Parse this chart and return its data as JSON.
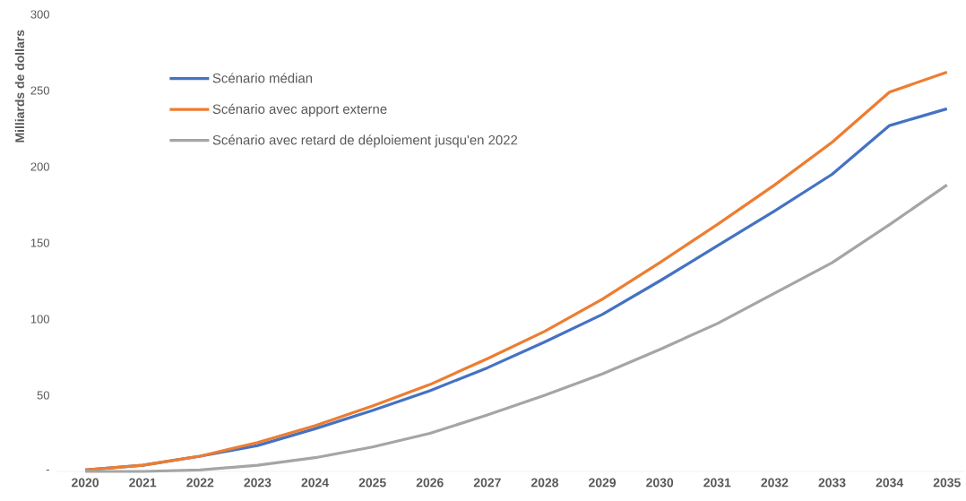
{
  "chart_data": {
    "type": "line",
    "ylabel": "Milliards de dollars",
    "categories": [
      "2020",
      "2021",
      "2022",
      "2023",
      "2024",
      "2025",
      "2026",
      "2027",
      "2028",
      "2029",
      "2030",
      "2031",
      "2032",
      "2033",
      "2034",
      "2035"
    ],
    "series": [
      {
        "name": "Scénario médian",
        "color": "#4472c4",
        "values": [
          1,
          4,
          10,
          17,
          28,
          40,
          53,
          68,
          85,
          103,
          125,
          148,
          171,
          195,
          227,
          238
        ]
      },
      {
        "name": "Scénario avec apport externe",
        "color": "#ed7d31",
        "values": [
          1,
          4,
          10,
          19,
          30,
          43,
          57,
          74,
          92,
          113,
          137,
          162,
          188,
          216,
          249,
          262
        ]
      },
      {
        "name": "Scénario avec retard de déploiement jusqu'en 2022",
        "color": "#a5a5a5",
        "values": [
          0,
          0,
          1,
          4,
          9,
          16,
          25,
          37,
          50,
          64,
          80,
          97,
          117,
          137,
          162,
          188
        ]
      }
    ],
    "ylim": [
      0,
      300
    ],
    "yticks": [
      {
        "value": 0,
        "label": "-"
      },
      50,
      100,
      150,
      200,
      250,
      300
    ],
    "grid": false,
    "legend": "top left",
    "marker": "none",
    "line_style": "solid"
  }
}
